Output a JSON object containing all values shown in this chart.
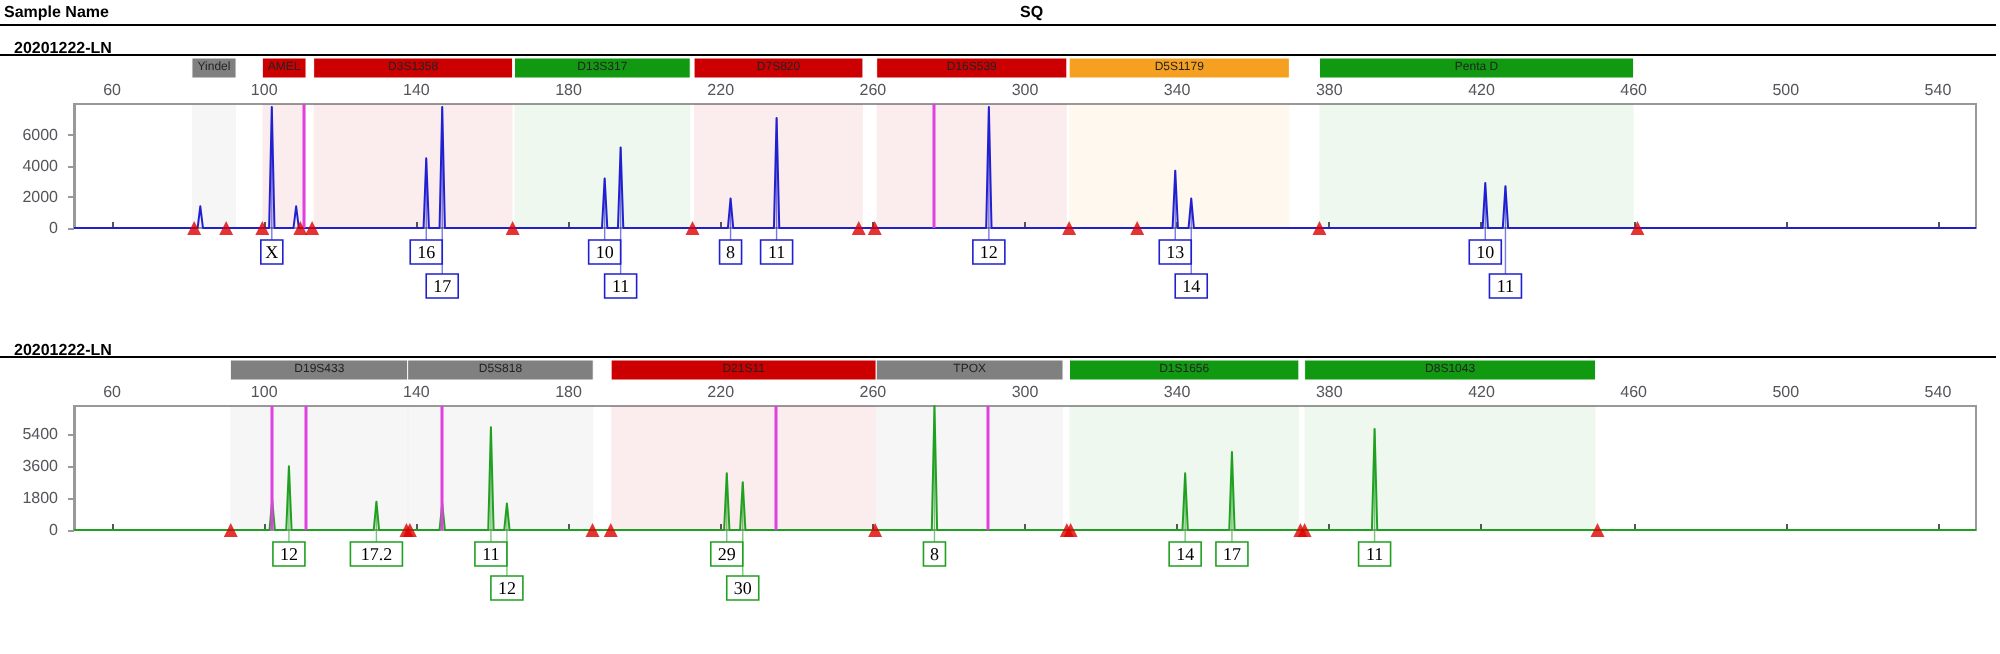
{
  "chart_data": [
    {
      "type": "line",
      "title": "20201222-LN",
      "annotations": [
        "Sample Name",
        "SQ",
        {
          "text": "X",
          "x": 102,
          "y": 7800
        },
        {
          "text": "16",
          "x": 142.6,
          "y": 4500
        },
        {
          "text": "17",
          "x": 146.8,
          "y": 7800
        },
        {
          "text": "10",
          "x": 189.5,
          "y": 3200
        },
        {
          "text": "11",
          "x": 193.7,
          "y": 5200
        },
        {
          "text": "8",
          "x": 222.6,
          "y": 1900
        },
        {
          "text": "11",
          "x": 234.7,
          "y": 7100
        },
        {
          "text": "12",
          "x": 290.5,
          "y": 7800
        },
        {
          "text": "13",
          "x": 339.5,
          "y": 3700
        },
        {
          "text": "14",
          "x": 343.7,
          "y": 1900
        },
        {
          "text": "10",
          "x": 421,
          "y": 2900
        },
        {
          "text": "11",
          "x": 426.3,
          "y": 2700
        }
      ],
      "xlim": [
        50,
        550
      ],
      "xticks": [
        60,
        100,
        140,
        180,
        220,
        260,
        300,
        340,
        380,
        420,
        460,
        500,
        540
      ],
      "ylim": [
        0,
        8000
      ],
      "yticks": [
        0,
        2000,
        4000,
        6000
      ],
      "grid": false,
      "bands": [
        {
          "axis": "x",
          "from": 81,
          "to": 92.6,
          "label": "Yindel",
          "color": "#808080"
        },
        {
          "axis": "x",
          "from": 99.5,
          "to": 111,
          "label": "AMEL",
          "color": "#cc0000"
        },
        {
          "axis": "x",
          "from": 113,
          "to": 165.3,
          "label": "D3S1358",
          "color": "#cc0000"
        },
        {
          "axis": "x",
          "from": 165.8,
          "to": 212,
          "label": "D13S317",
          "color": "#119911"
        },
        {
          "axis": "x",
          "from": 213,
          "to": 257.4,
          "label": "D7S820",
          "color": "#cc0000"
        },
        {
          "axis": "x",
          "from": 261,
          "to": 311,
          "label": "D16S539",
          "color": "#cc0000"
        },
        {
          "axis": "x",
          "from": 311.6,
          "to": 369.5,
          "label": "D5S1179",
          "color": "#f5a020"
        },
        {
          "axis": "x",
          "from": 377.4,
          "to": 460,
          "label": "Penta D",
          "color": "#119911"
        }
      ],
      "ref_lines": [
        {
          "axis": "x",
          "value": 110.5,
          "color": "#e040e0"
        },
        {
          "axis": "x",
          "value": 275.8,
          "color": "#e040e0"
        }
      ],
      "series": [
        {
          "color": "#2020d0",
          "x": [
            50,
            82.5,
            83.2,
            83.9,
            101.3,
            102,
            102.7,
            107.7,
            108.4,
            109.1,
            141.9,
            142.6,
            143.3,
            146.1,
            146.8,
            147.5,
            188.8,
            189.5,
            190.2,
            193,
            193.7,
            194.4,
            221.9,
            222.6,
            223.3,
            234,
            234.7,
            235.4,
            289.8,
            290.5,
            291.2,
            338.8,
            339.5,
            340.2,
            343,
            343.7,
            344.4,
            420.3,
            421,
            421.7,
            425.6,
            426.3,
            427,
            550
          ],
          "values": [
            0,
            0,
            1400,
            0,
            0,
            7800,
            0,
            0,
            1400,
            0,
            0,
            4500,
            0,
            0,
            7800,
            0,
            0,
            3200,
            0,
            0,
            5200,
            0,
            0,
            1900,
            0,
            0,
            7100,
            0,
            0,
            7800,
            0,
            0,
            3700,
            0,
            0,
            1900,
            0,
            0,
            2900,
            0,
            0,
            2700,
            0,
            0
          ]
        },
        {
          "type": "scatter",
          "marker": "triangle",
          "color": "#dd0000",
          "x": [
            81.6,
            90,
            99.5,
            109.5,
            112.6,
            165.3,
            212.6,
            256.3,
            260.5,
            311.6,
            329.5,
            377.4,
            461
          ],
          "values": [
            0,
            0,
            0,
            0,
            0,
            0,
            0,
            0,
            0,
            0,
            0,
            0,
            0
          ]
        }
      ]
    },
    {
      "type": "line",
      "title": "20201222-LN",
      "annotations": [
        {
          "text": "12",
          "x": 106.5,
          "y": 3600
        },
        {
          "text": "17.2",
          "x": 129.5,
          "y": 1600
        },
        {
          "text": "11",
          "x": 159.6,
          "y": 5800
        },
        {
          "text": "12",
          "x": 163.8,
          "y": 1500
        },
        {
          "text": "29",
          "x": 221.6,
          "y": 3200
        },
        {
          "text": "30",
          "x": 225.8,
          "y": 2700
        },
        {
          "text": "8",
          "x": 276.2,
          "y": 7000
        },
        {
          "text": "14",
          "x": 342.1,
          "y": 3200
        },
        {
          "text": "17",
          "x": 354.4,
          "y": 4400
        },
        {
          "text": "11",
          "x": 391.9,
          "y": 5700
        }
      ],
      "xlim": [
        50,
        550
      ],
      "xticks": [
        60,
        100,
        140,
        180,
        220,
        260,
        300,
        340,
        380,
        420,
        460,
        500,
        540
      ],
      "ylim": [
        0,
        7000
      ],
      "yticks": [
        0,
        1800,
        3600,
        5400
      ],
      "grid": false,
      "bands": [
        {
          "axis": "x",
          "from": 91.1,
          "to": 137.9,
          "label": "D19S433",
          "color": "#808080"
        },
        {
          "axis": "x",
          "from": 137.7,
          "to": 186.5,
          "label": "D5S818",
          "color": "#808080"
        },
        {
          "axis": "x",
          "from": 191.2,
          "to": 260.9,
          "label": "D21S11",
          "color": "#cc0000"
        },
        {
          "axis": "x",
          "from": 260.9,
          "to": 310,
          "label": "TPOX",
          "color": "#808080"
        },
        {
          "axis": "x",
          "from": 311.7,
          "to": 372,
          "label": "D1S1656",
          "color": "#119911"
        },
        {
          "axis": "x",
          "from": 373.5,
          "to": 450,
          "label": "D8S1043",
          "color": "#119911"
        }
      ],
      "ref_lines": [
        {
          "axis": "x",
          "value": 102.1,
          "color": "#e040e0"
        },
        {
          "axis": "x",
          "value": 110.9,
          "color": "#e040e0"
        },
        {
          "axis": "x",
          "value": 146.8,
          "color": "#e040e0"
        },
        {
          "axis": "x",
          "value": 234.6,
          "color": "#e040e0"
        },
        {
          "axis": "x",
          "value": 290.4,
          "color": "#e040e0"
        }
      ],
      "series": [
        {
          "color": "#20a020",
          "x": [
            50,
            101.4,
            102.1,
            102.8,
            105.8,
            106.5,
            107.2,
            128.8,
            129.5,
            130.2,
            146.1,
            146.8,
            147.5,
            158.9,
            159.6,
            160.3,
            163.1,
            163.8,
            164.5,
            220.9,
            221.6,
            222.3,
            225.1,
            225.8,
            226.5,
            275.5,
            276.2,
            276.9,
            341.4,
            342.1,
            342.8,
            353.7,
            354.4,
            355.1,
            391.2,
            391.9,
            392.6,
            550
          ],
          "values": [
            0,
            0,
            1700,
            0,
            0,
            3600,
            0,
            0,
            1600,
            0,
            0,
            1500,
            0,
            0,
            5800,
            0,
            0,
            1500,
            0,
            0,
            3200,
            0,
            0,
            2700,
            0,
            0,
            7000,
            0,
            0,
            3200,
            0,
            0,
            4400,
            0,
            0,
            5700,
            0,
            0
          ]
        },
        {
          "type": "scatter",
          "marker": "triangle",
          "color": "#dd0000",
          "x": [
            91.2,
            137.4,
            138.3,
            186.3,
            191.1,
            260.6,
            311,
            312,
            372.4,
            373.5,
            450.5
          ],
          "values": [
            0,
            0,
            0,
            0,
            0,
            0,
            0,
            0,
            0,
            0,
            0
          ]
        }
      ]
    }
  ]
}
